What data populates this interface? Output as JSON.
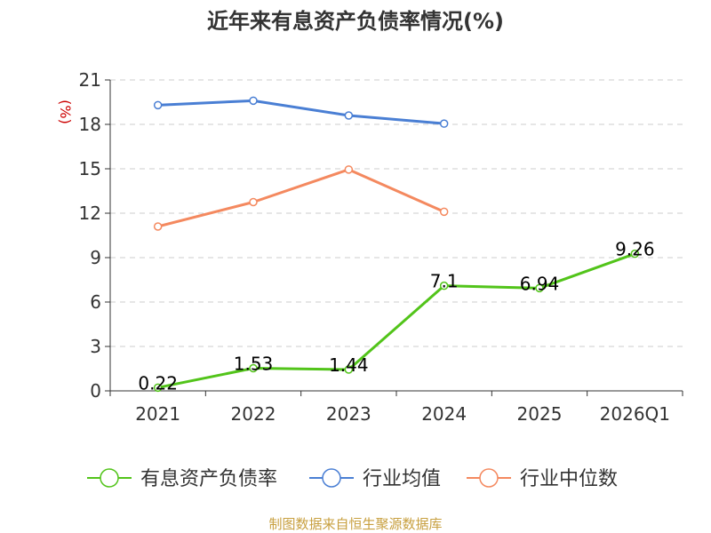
{
  "chart_data": {
    "type": "line",
    "title": "近年来有息资产负债率情况(%)",
    "unit_label": "(%)",
    "categories": [
      "2021",
      "2022",
      "2023",
      "2024",
      "2025",
      "2026Q1"
    ],
    "ylim": [
      0,
      21
    ],
    "yticks": [
      0,
      3,
      6,
      9,
      12,
      15,
      18,
      21
    ],
    "grid": true,
    "legend_position": "bottom",
    "series": [
      {
        "name": "有息资产负债率",
        "color": "#52c41a",
        "values": [
          0.22,
          1.53,
          1.44,
          7.1,
          6.94,
          9.26
        ],
        "labels": [
          "0.22",
          "1.53",
          "1.44",
          "7.1",
          "6.94",
          "9.26"
        ]
      },
      {
        "name": "行业均值",
        "color": "#4a7fd4",
        "values": [
          19.3,
          19.6,
          18.6,
          18.05,
          null,
          null
        ]
      },
      {
        "name": "行业中位数",
        "color": "#f4895f",
        "values": [
          11.1,
          12.75,
          14.95,
          12.1,
          null,
          null
        ]
      }
    ]
  },
  "source_text": "制图数据来自恒生聚源数据库"
}
